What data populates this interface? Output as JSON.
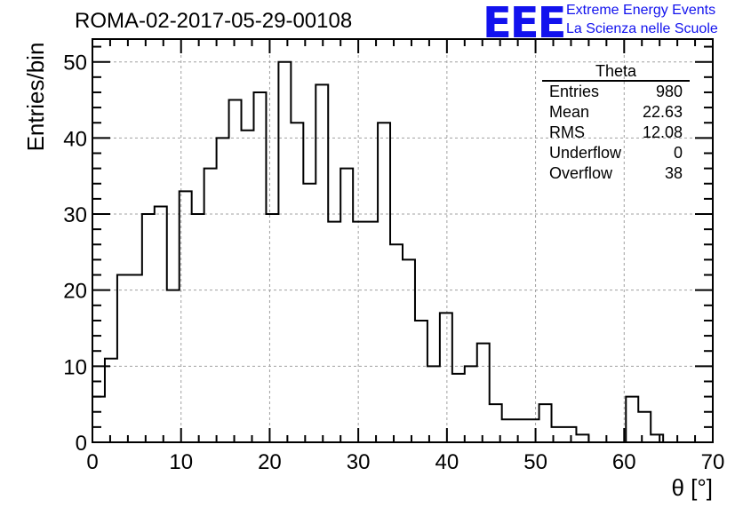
{
  "header": {
    "title": "ROMA-02-2017-05-29-00108",
    "logo_text": "EEE",
    "logo_line1": "Extreme Energy Events",
    "logo_line2": "La Scienza nelle Scuole"
  },
  "stats_box": {
    "title": "Theta",
    "rows": [
      {
        "label": "Entries",
        "value": "980"
      },
      {
        "label": "Mean",
        "value": "22.63"
      },
      {
        "label": "RMS",
        "value": "12.08"
      },
      {
        "label": "Underflow",
        "value": "0"
      },
      {
        "label": "Overflow",
        "value": "38"
      }
    ]
  },
  "chart_data": {
    "type": "bar",
    "title": "ROMA-02-2017-05-29-00108",
    "xlabel": "θ [°]",
    "ylabel": "Entries/bin",
    "xlim": [
      0,
      70
    ],
    "ylim": [
      0,
      53
    ],
    "xticks": [
      0,
      10,
      20,
      30,
      40,
      50,
      60,
      70
    ],
    "yticks": [
      0,
      10,
      20,
      30,
      40,
      50
    ],
    "grid": true,
    "bin_width": 1.4,
    "bin_edges_start": 0,
    "values": [
      6,
      11,
      22,
      22,
      30,
      31,
      20,
      33,
      30,
      36,
      40,
      45,
      41,
      46,
      30,
      50,
      42,
      34,
      47,
      29,
      36,
      29,
      29,
      42,
      26,
      24,
      16,
      10,
      17,
      9,
      10,
      13,
      5,
      3,
      3,
      3,
      5,
      2,
      2,
      1,
      0,
      0,
      0,
      6,
      4,
      1,
      0,
      0,
      0,
      0
    ],
    "colors": {
      "line": "#000000",
      "grid": "#a0a0a0",
      "accent": "#1212ee"
    }
  }
}
